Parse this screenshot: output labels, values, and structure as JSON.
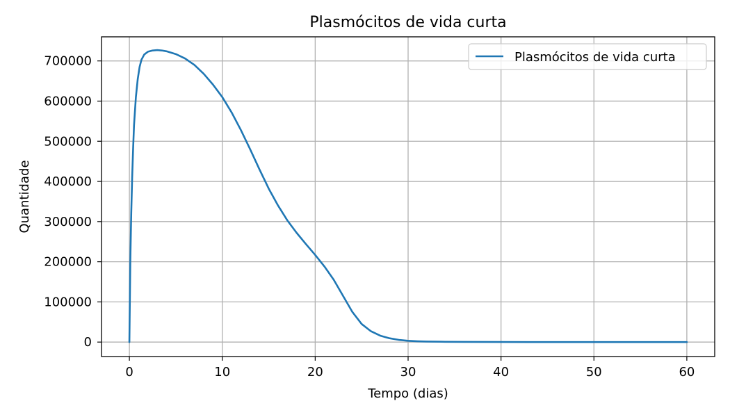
{
  "chart_data": {
    "type": "line",
    "title": "Plasmócitos de vida curta",
    "xlabel": "Tempo (dias)",
    "ylabel": "Quantidade",
    "xlim": [
      -3,
      63
    ],
    "ylim": [
      -36000,
      760000
    ],
    "xticks": [
      0,
      10,
      20,
      30,
      40,
      50,
      60
    ],
    "xtick_labels": [
      "0",
      "10",
      "20",
      "30",
      "40",
      "50",
      "60"
    ],
    "yticks": [
      0,
      100000,
      200000,
      300000,
      400000,
      500000,
      600000,
      700000
    ],
    "ytick_labels": [
      "0",
      "100000",
      "200000",
      "300000",
      "400000",
      "500000",
      "600000",
      "700000"
    ],
    "grid": true,
    "legend_position": "top-right",
    "series": [
      {
        "name": "Plasmócitos de vida curta",
        "color": "#1f77b4",
        "x": [
          0,
          0.1,
          0.2,
          0.3,
          0.4,
          0.5,
          0.7,
          0.9,
          1.1,
          1.3,
          1.6,
          2.0,
          2.5,
          3.0,
          3.5,
          4.0,
          5.0,
          6.0,
          7.0,
          8.0,
          9.0,
          10.0,
          11.0,
          12.0,
          13.0,
          14.0,
          15.0,
          16.0,
          17.0,
          18.0,
          19.0,
          20.0,
          21.0,
          22.0,
          23.0,
          24.0,
          25.0,
          26.0,
          27.0,
          28.0,
          29.0,
          30.0,
          31.0,
          32.0,
          34.0,
          36.0,
          40.0,
          45.0,
          50.0,
          55.0,
          60.0
        ],
        "values": [
          0,
          200000,
          320000,
          410000,
          480000,
          540000,
          610000,
          655000,
          685000,
          703000,
          716000,
          723000,
          726000,
          727000,
          726000,
          724000,
          717000,
          706000,
          690000,
          668000,
          641000,
          610000,
          572000,
          528000,
          480000,
          430000,
          382000,
          340000,
          303000,
          272000,
          244000,
          217000,
          188000,
          155000,
          115000,
          75000,
          45000,
          27000,
          16000,
          9500,
          5500,
          3200,
          2000,
          1300,
          700,
          400,
          150,
          50,
          20,
          10,
          5
        ]
      }
    ]
  }
}
